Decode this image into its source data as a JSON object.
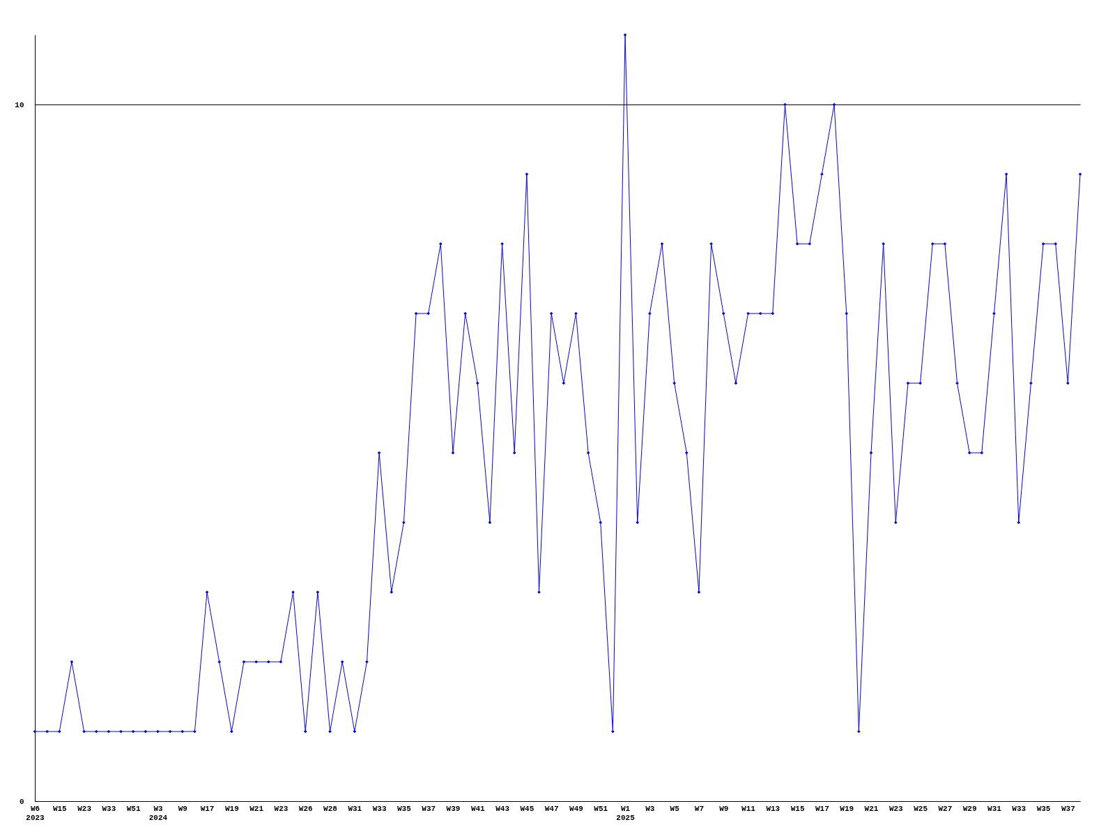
{
  "chart_data": {
    "type": "line",
    "categories": [
      "W6\n2023",
      null,
      "W15",
      null,
      "W23",
      null,
      "W33",
      null,
      "W51",
      null,
      "W3\n2024",
      null,
      "W9",
      null,
      "W17",
      null,
      "W19",
      null,
      "W21",
      null,
      "W23",
      null,
      "W26",
      null,
      "W28",
      null,
      "W31",
      null,
      "W33",
      null,
      "W35",
      null,
      "W37",
      null,
      "W39",
      null,
      "W41",
      null,
      "W43",
      null,
      "W45",
      null,
      "W47",
      null,
      "W49",
      null,
      "W51",
      null,
      "W1\n2025",
      null,
      "W3",
      null,
      "W5",
      null,
      "W7",
      null,
      "W9",
      null,
      "W11",
      null,
      "W13",
      null,
      "W15",
      null,
      "W17",
      null,
      "W19",
      null,
      "W21",
      null,
      "W23",
      null,
      "W25",
      null,
      "W27",
      null,
      "W29",
      null,
      "W31",
      null,
      "W33",
      null,
      "W35",
      null,
      "W37",
      null
    ],
    "series": [
      {
        "color": "#0000ff",
        "values": [
          1,
          1,
          1,
          2,
          1,
          1,
          1,
          1,
          1,
          1,
          1,
          1,
          1,
          1,
          3,
          2,
          1,
          2,
          2,
          2,
          2,
          3,
          1,
          3,
          1,
          2,
          1,
          2,
          5,
          3,
          4,
          7,
          7,
          8,
          5,
          7,
          6,
          4,
          8,
          5,
          9,
          3,
          7,
          6,
          7,
          5,
          4,
          1,
          11,
          4,
          7,
          8,
          6,
          5,
          3,
          8,
          7,
          6,
          7,
          7,
          7,
          10,
          8,
          8,
          9,
          10,
          7,
          1,
          5,
          8,
          4,
          6,
          6,
          8,
          8,
          6,
          5,
          5,
          7,
          9,
          4,
          6,
          8,
          8,
          6,
          9
        ]
      }
    ],
    "ylim": [
      0,
      11
    ],
    "yticks": [
      0,
      10
    ],
    "grid": "y",
    "marker": "diamond",
    "line_style": "solid"
  }
}
